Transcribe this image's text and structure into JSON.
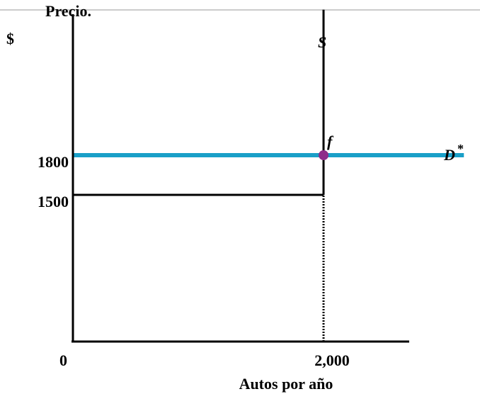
{
  "chart_data": {
    "type": "line",
    "ylabel": "Precio.",
    "ylabel_unit": "$",
    "xlabel": "Autos por año",
    "origin_label": "0",
    "x_ticks": [
      {
        "value": 2000,
        "label": "2,000"
      }
    ],
    "y_ticks": [
      {
        "value": 1800,
        "label": "1800"
      },
      {
        "value": 1500,
        "label": "1500"
      }
    ],
    "series": [
      {
        "name": "D",
        "superscript": "*",
        "kind": "horizontal",
        "y": 1800,
        "x_range": [
          0,
          3120
        ],
        "color": "#1a9fc8"
      },
      {
        "name": "S",
        "kind": "vertical",
        "x": 2000,
        "y_range": [
          1500,
          2900
        ],
        "color": "#000000"
      }
    ],
    "guides": [
      {
        "kind": "horizontal",
        "y": 1500,
        "x_range": [
          0,
          2000
        ],
        "style": "solid"
      },
      {
        "kind": "vertical",
        "x": 2000,
        "y_range": [
          0,
          1500
        ],
        "style": "dotted"
      }
    ],
    "points": [
      {
        "label": "f",
        "x": 2000,
        "y": 1800,
        "color": "#8e2d8a"
      }
    ]
  }
}
